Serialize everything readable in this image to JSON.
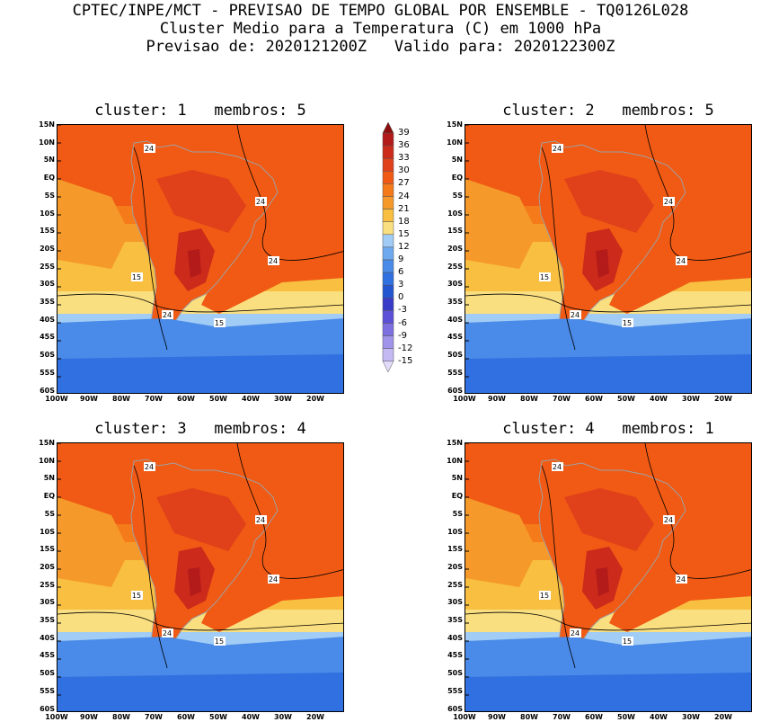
{
  "header": {
    "line1": "CPTEC/INPE/MCT - PREVISAO DE TEMPO GLOBAL POR ENSEMBLE - TQ0126L028",
    "line2": "Cluster Medio para a Temperatura (C) em 1000 hPa",
    "line3": "Previsao de: 2020121200Z   Valido para: 2020122300Z"
  },
  "panels": [
    {
      "title": "cluster: 1   membros: 5",
      "contour_labels": [
        "24",
        "24",
        "24",
        "15",
        "24",
        "15"
      ]
    },
    {
      "title": "cluster: 2   membros: 5",
      "contour_labels": [
        "24",
        "24",
        "24",
        "15",
        "24",
        "15"
      ]
    },
    {
      "title": "cluster: 3   membros: 4",
      "contour_labels": [
        "24",
        "24",
        "24",
        "15",
        "24",
        "15"
      ]
    },
    {
      "title": "cluster: 4   membros: 1",
      "contour_labels": [
        "24",
        "24",
        "24",
        "15",
        "24",
        "15"
      ]
    }
  ],
  "lat_labels": [
    "15N",
    "10N",
    "5N",
    "EQ",
    "5S",
    "10S",
    "15S",
    "20S",
    "25S",
    "30S",
    "35S",
    "40S",
    "45S",
    "50S",
    "55S",
    "60S"
  ],
  "lon_labels": [
    "100W",
    "90W",
    "80W",
    "70W",
    "60W",
    "50W",
    "40W",
    "30W",
    "20W"
  ],
  "colorbar": {
    "labels": [
      "39",
      "36",
      "33",
      "30",
      "27",
      "24",
      "21",
      "18",
      "15",
      "12",
      "9",
      "6",
      "3",
      "0",
      "-3",
      "-6",
      "-9",
      "-12",
      "-15"
    ],
    "colors": [
      "#8c0d0d",
      "#b31a1a",
      "#cc2a1a",
      "#e0401a",
      "#f05a14",
      "#f57a1a",
      "#f59a2a",
      "#f8bf40",
      "#fadf80",
      "#a0ccf5",
      "#6ea8ef",
      "#4a8ae8",
      "#3070e0",
      "#2455d0",
      "#3a3ac8",
      "#5c50d8",
      "#7d6fe0",
      "#a094ea",
      "#c4b9f2",
      "#e2dcfa"
    ]
  }
}
